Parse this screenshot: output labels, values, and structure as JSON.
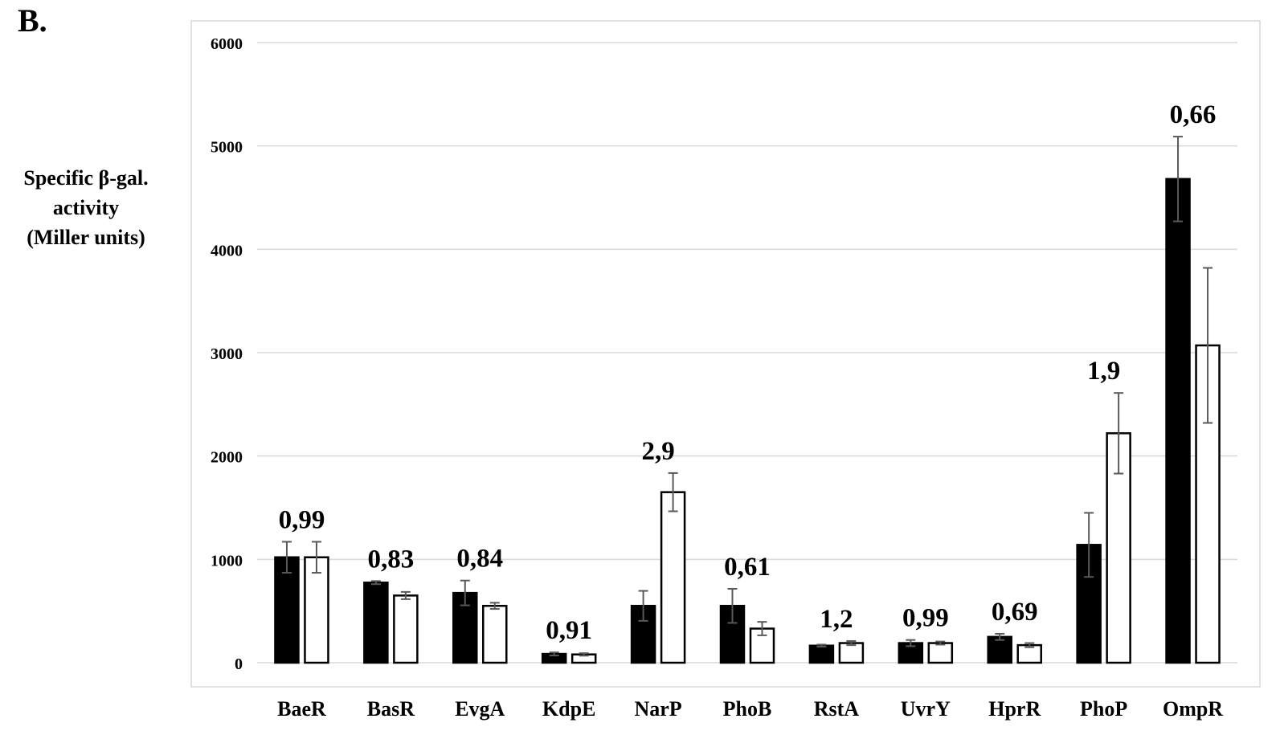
{
  "panel_label": "B.",
  "chart_data": {
    "type": "bar",
    "ylabel_lines": [
      "Specific β-gal.",
      "activity",
      "(Miller units)"
    ],
    "xlabel": "",
    "ylim": [
      0,
      6000
    ],
    "yticks": [
      0,
      1000,
      2000,
      3000,
      4000,
      5000,
      6000
    ],
    "grid": true,
    "categories": [
      "BaeR",
      "BasR",
      "EvgA",
      "KdpE",
      "NarP",
      "PhoB",
      "RstA",
      "UvrY",
      "HprR",
      "PhoP",
      "OmpR"
    ],
    "series": [
      {
        "color": "#000000",
        "values": [
          1020,
          775,
          675,
          85,
          550,
          550,
          165,
          190,
          250,
          1140,
          4680
        ],
        "errors": [
          150,
          15,
          120,
          15,
          145,
          165,
          10,
          30,
          30,
          310,
          410
        ]
      },
      {
        "color": "#ffffff",
        "values": [
          1020,
          650,
          550,
          80,
          1650,
          330,
          190,
          190,
          170,
          2220,
          3070
        ],
        "errors": [
          150,
          35,
          30,
          12,
          185,
          65,
          20,
          15,
          20,
          390,
          750
        ]
      }
    ],
    "annotations": [
      "0,99",
      "0,83",
      "0,84",
      "0,91",
      "2,9",
      "0,61",
      "1,2",
      "0,99",
      "0,69",
      "1,9",
      "0,66"
    ]
  }
}
